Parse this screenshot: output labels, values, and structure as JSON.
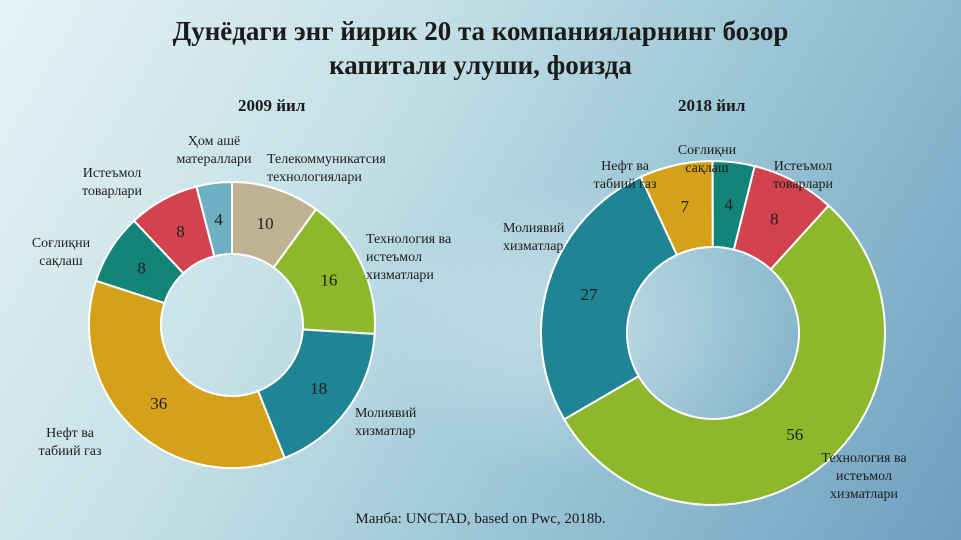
{
  "title": {
    "line1": "Дунёдаги энг йирик 20 та компанияларнинг бозор",
    "line2": "капитали улуши, фоизда"
  },
  "source": "Манба: UNCTAD, based on Pwc, 2018b.",
  "colors": {
    "telecom": "#bfb293",
    "tech": "#8db82c",
    "finance": "#1f8493",
    "oil": "#d5a11a",
    "health": "#138478",
    "consumer": "#d2434f",
    "raw": "#6fb1c2"
  },
  "chart_data": [
    {
      "type": "pie",
      "title": "2009 йил",
      "slices": [
        {
          "label": "Телекоммуникатсия технологиялари",
          "value": 10,
          "color_key": "telecom"
        },
        {
          "label": "Технология ва истеъмол хизматлари",
          "value": 16,
          "color_key": "tech"
        },
        {
          "label": "Молиявий хизматлар",
          "value": 18,
          "color_key": "finance"
        },
        {
          "label": "Нефт ва табиий газ",
          "value": 36,
          "color_key": "oil"
        },
        {
          "label": "Соғлиқни сақлаш",
          "value": 8,
          "color_key": "health"
        },
        {
          "label": "Истеъмол товарлари",
          "value": 8,
          "color_key": "consumer"
        },
        {
          "label": "Ҳом ашё матераллари",
          "value": 4,
          "color_key": "raw"
        }
      ]
    },
    {
      "type": "pie",
      "title": "2018 йил",
      "slices": [
        {
          "label": "Истеъмол товарлари",
          "value": 8,
          "color_key": "consumer"
        },
        {
          "label": "Технология ва истеъмол хизматлари",
          "value": 56,
          "color_key": "tech"
        },
        {
          "label": "Молиявий хизматлар",
          "value": 27,
          "color_key": "finance"
        },
        {
          "label": "Нефт ва табиий газ",
          "value": 7,
          "color_key": "oil"
        },
        {
          "label": "Соғлиқни сақлаш",
          "value": 4,
          "color_key": "health"
        }
      ]
    }
  ]
}
